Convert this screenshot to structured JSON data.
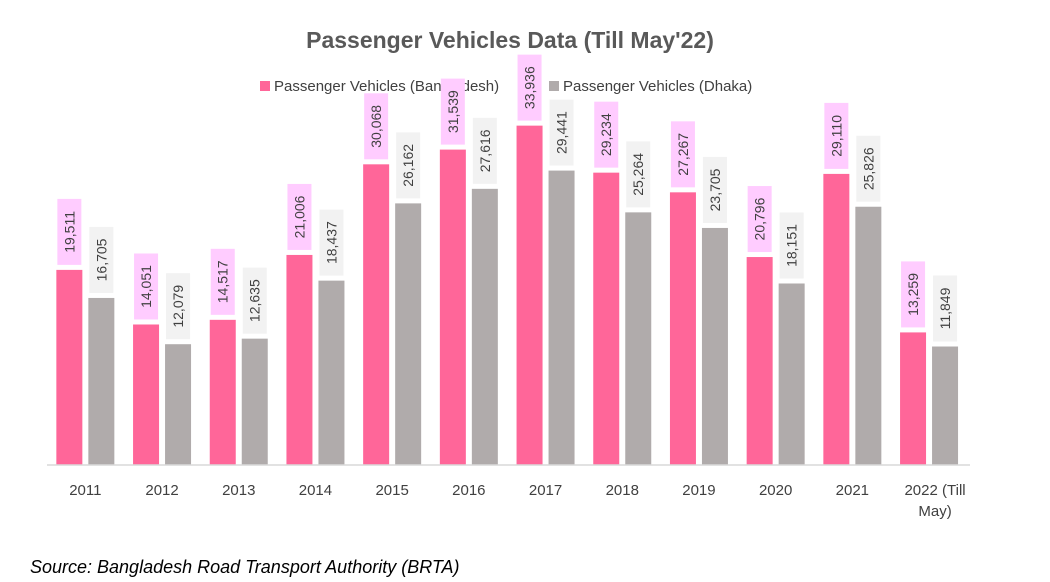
{
  "chart_data": {
    "type": "bar",
    "title": "Passenger Vehicles Data (Till May'22)",
    "categories": [
      "2011",
      "2012",
      "2013",
      "2014",
      "2015",
      "2016",
      "2017",
      "2018",
      "2019",
      "2020",
      "2021",
      "2022 (Till May)"
    ],
    "series": [
      {
        "name": "Passenger Vehicles (Bangladesh)",
        "color": "#ff6699",
        "label_bg": "#ffccff",
        "values": [
          19511,
          14051,
          14517,
          21006,
          30068,
          31539,
          33936,
          29234,
          27267,
          20796,
          29110,
          13259
        ],
        "labels": [
          "19,511",
          "14,051",
          "14,517",
          "21,006",
          "30,068",
          "31,539",
          "33,936",
          "29,234",
          "27,267",
          "20,796",
          "29,110",
          "13,259"
        ]
      },
      {
        "name": "Passenger Vehicles  (Dhaka)",
        "color": "#b0abab",
        "label_bg": "#f2f2f2",
        "values": [
          16705,
          12079,
          12635,
          18437,
          26162,
          27616,
          29441,
          25264,
          23705,
          18151,
          25826,
          11849
        ],
        "labels": [
          "16,705",
          "12,079",
          "12,635",
          "18,437",
          "26,162",
          "27,616",
          "29,441",
          "25,264",
          "23,705",
          "18,151",
          "25,826",
          "11,849"
        ]
      }
    ],
    "ylim": [
      0,
      40000
    ],
    "y_axis_visible": false,
    "grid": false,
    "legend_position": "top",
    "data_label_rotation": "vertical"
  },
  "source": "Source: Bangladesh Road Transport Authority (BRTA)",
  "axis_color": "#d9d9d9"
}
